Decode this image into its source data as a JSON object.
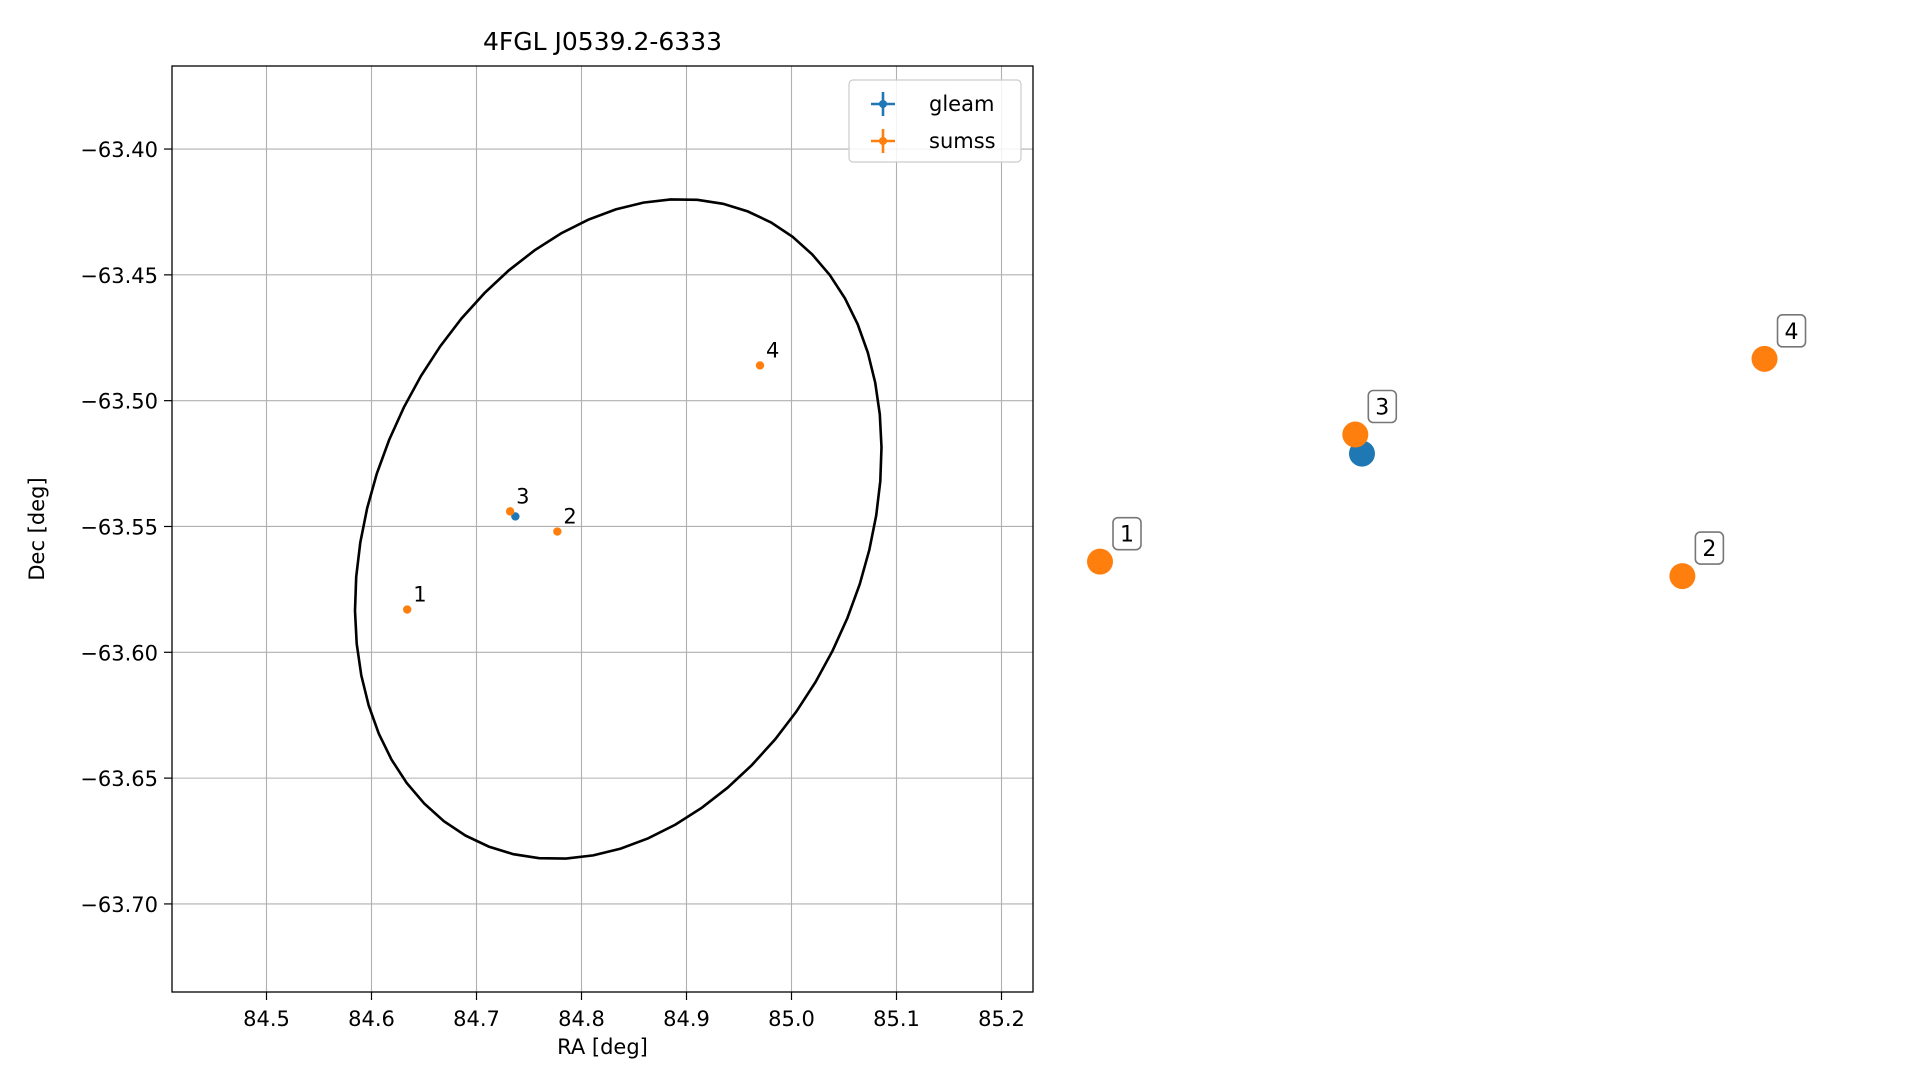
{
  "chart_data": [
    {
      "type": "scatter",
      "title": "4FGL J0539.2-6333",
      "xlabel": "RA [deg]",
      "ylabel": "Dec [deg]",
      "xlim": [
        84.41,
        85.23
      ],
      "ylim": [
        -63.735,
        -63.367
      ],
      "x_ticks": [
        84.5,
        84.6,
        84.7,
        84.8,
        84.9,
        85.0,
        85.1,
        85.2
      ],
      "x_tick_labels": [
        "84.5",
        "84.6",
        "84.7",
        "84.8",
        "84.9",
        "85.0",
        "85.1",
        "85.2"
      ],
      "y_ticks": [
        -63.4,
        -63.45,
        -63.5,
        -63.55,
        -63.6,
        -63.65,
        -63.7
      ],
      "y_tick_labels": [
        "−63.40",
        "−63.45",
        "−63.50",
        "−63.55",
        "−63.60",
        "−63.65",
        "−63.70"
      ],
      "grid": true,
      "legend_position": "top-right",
      "series": [
        {
          "name": "gleam",
          "color": "#1f77b4",
          "points": [
            {
              "x": 84.737,
              "y": -63.546
            }
          ]
        },
        {
          "name": "sumss",
          "color": "#ff7f0e",
          "points": [
            {
              "x": 84.634,
              "y": -63.583,
              "label": "1"
            },
            {
              "x": 84.777,
              "y": -63.552,
              "label": "2"
            },
            {
              "x": 84.732,
              "y": -63.544,
              "label": "3"
            },
            {
              "x": 84.97,
              "y": -63.486,
              "label": "4"
            }
          ]
        }
      ],
      "ellipse": {
        "color": "#000000",
        "center": {
          "x": 84.835,
          "y": -63.551
        },
        "semi_axis_a": 0.138,
        "semi_axis_b": 0.103,
        "angle_deg": 62
      }
    },
    {
      "type": "scatter",
      "grid": false,
      "series": [
        {
          "name": "gleam",
          "color": "#1f77b4",
          "points": [
            {
              "x": 0.354,
              "y": 0.542,
              "link_to": "3"
            }
          ]
        },
        {
          "name": "sumss",
          "color": "#ff7f0e",
          "points": [
            {
              "x": 0.0,
              "y": 0.265,
              "label": "1"
            },
            {
              "x": 0.787,
              "y": 0.228,
              "label": "2"
            },
            {
              "x": 0.345,
              "y": 0.591,
              "label": "3"
            },
            {
              "x": 0.898,
              "y": 0.785,
              "label": "4"
            }
          ]
        }
      ]
    }
  ]
}
